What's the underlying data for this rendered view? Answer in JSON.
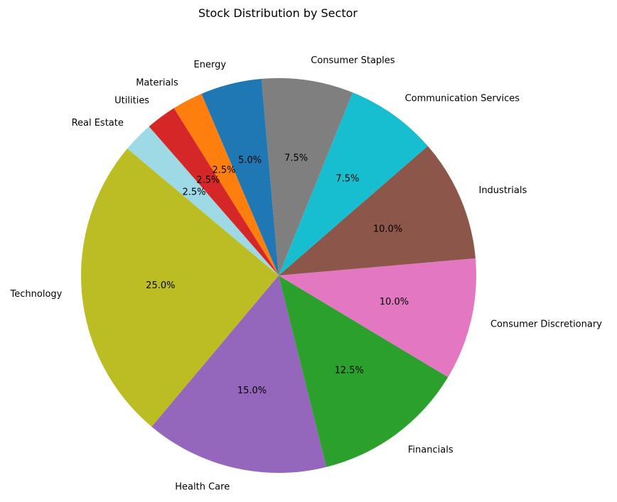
{
  "chart_data": {
    "type": "pie",
    "title": "Stock Distribution by Sector",
    "autopct_format": "%.1f%%",
    "start_angle_deg": 140,
    "direction": "counterclockwise",
    "slices": [
      {
        "label": "Technology",
        "value": 25.0,
        "color": "#bcbd22"
      },
      {
        "label": "Health Care",
        "value": 15.0,
        "color": "#9467bd"
      },
      {
        "label": "Financials",
        "value": 12.5,
        "color": "#2ca02c"
      },
      {
        "label": "Consumer Discretionary",
        "value": 10.0,
        "color": "#e377c2"
      },
      {
        "label": "Industrials",
        "value": 10.0,
        "color": "#8c564b"
      },
      {
        "label": "Communication Services",
        "value": 7.5,
        "color": "#17becf"
      },
      {
        "label": "Consumer Staples",
        "value": 7.5,
        "color": "#7f7f7f"
      },
      {
        "label": "Energy",
        "value": 5.0,
        "color": "#1f77b4"
      },
      {
        "label": "Materials",
        "value": 2.5,
        "color": "#ff7f0e"
      },
      {
        "label": "Utilities",
        "value": 2.5,
        "color": "#d62728"
      },
      {
        "label": "Real Estate",
        "value": 2.5,
        "color": "#9edae5"
      }
    ]
  }
}
